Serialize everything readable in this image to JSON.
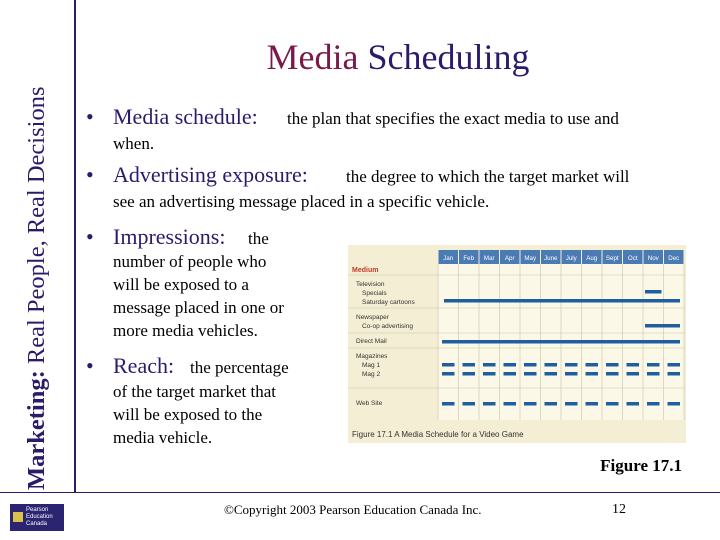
{
  "side_title": {
    "part1": "Marketing:",
    "part2": " Real People, Real Decisions"
  },
  "title": {
    "word1": "Media",
    "word2": " Scheduling"
  },
  "bullets": [
    {
      "term": "Media schedule:",
      "def1": "the plan that specifies the exact media to use and",
      "def2": "when."
    },
    {
      "term": "Advertising exposure:",
      "def1": "the degree to which the target market will",
      "def2": "see an advertising message placed in a specific vehicle."
    },
    {
      "term": "Impressions:",
      "def1": "the",
      "lines": [
        "number of people who",
        "will be exposed to a",
        "message placed in one or",
        "more media vehicles."
      ]
    },
    {
      "term": "Reach:",
      "def1": "the percentage",
      "lines": [
        "of the target market that",
        "will be exposed to the",
        "media vehicle."
      ]
    }
  ],
  "figure": {
    "header_label": "Medium",
    "months": [
      "Jan",
      "Feb",
      "Mar",
      "Apr",
      "May",
      "June",
      "July",
      "Aug",
      "Sept",
      "Oct",
      "Nov",
      "Dec"
    ],
    "rows": [
      "Television",
      "Specials",
      "Saturday cartoons",
      "Newspaper",
      "Co-op advertising",
      "Direct Mail",
      "Magazines",
      "Mag 1",
      "Mag 2",
      "Web Site"
    ],
    "caption": "Figure 17.1  A Media Schedule for a Video Game",
    "colors": {
      "bar": "#1f5fa0",
      "header": "#4b7bb3",
      "label": "#c0392b"
    }
  },
  "figure_label": "Figure 17.1",
  "copyright": "©Copyright 2003 Pearson Education Canada Inc.",
  "page_number": "12",
  "logo": {
    "line1": "Pearson",
    "line2": "Education",
    "line3": "Canada"
  }
}
